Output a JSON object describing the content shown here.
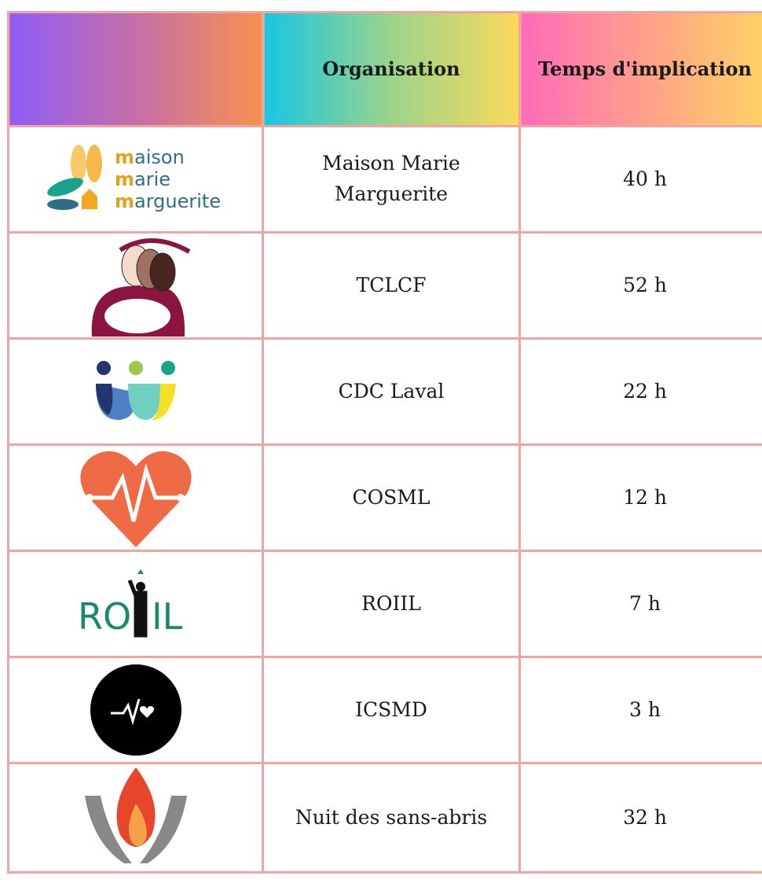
{
  "header": {
    "columns": [
      "Organisation",
      "Temps d'implication"
    ]
  },
  "table": {
    "rows": [
      {
        "logo_text": [
          "aison",
          "arie",
          "arguerite"
        ],
        "organisation": "Maison Marie Marguerite",
        "time": "40 h"
      },
      {
        "organisation": "TCLCF",
        "time": "52 h"
      },
      {
        "organisation": "CDC Laval",
        "time": "22 h"
      },
      {
        "organisation": "COSML",
        "time": "12 h"
      },
      {
        "logo_text": [
          "RO",
          "IL"
        ],
        "organisation": "ROIIL",
        "time": "7 h"
      },
      {
        "organisation": "ICSMD",
        "time": "3 h"
      },
      {
        "organisation": "Nuit des sans-abris",
        "time": "32 h"
      }
    ]
  }
}
